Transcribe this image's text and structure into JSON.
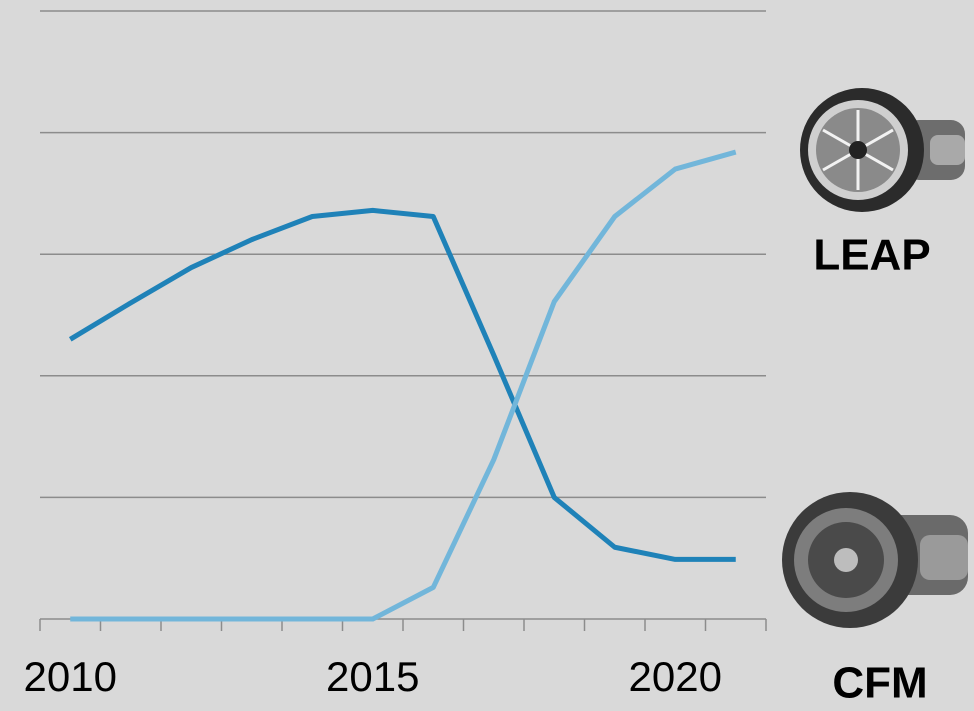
{
  "chart_data": {
    "type": "line",
    "categories": [
      "2010",
      null,
      null,
      null,
      null,
      "2015",
      null,
      null,
      null,
      null,
      "2020",
      null
    ],
    "series": [
      {
        "name": "CFM",
        "color": "#1f82b8",
        "values": [
          2.3,
          2.6,
          2.89,
          3.12,
          3.31,
          3.36,
          3.31,
          2.17,
          1.0,
          0.59,
          0.49,
          0.49
        ]
      },
      {
        "name": "LEAP",
        "color": "#72b6da",
        "values": [
          0,
          0,
          0,
          0,
          0,
          0,
          0.26,
          1.31,
          2.61,
          3.31,
          3.7,
          3.84
        ]
      }
    ],
    "ylim": [
      0,
      5
    ],
    "yticks": [
      0,
      1,
      2,
      3,
      4,
      5
    ],
    "grid": true
  }
}
